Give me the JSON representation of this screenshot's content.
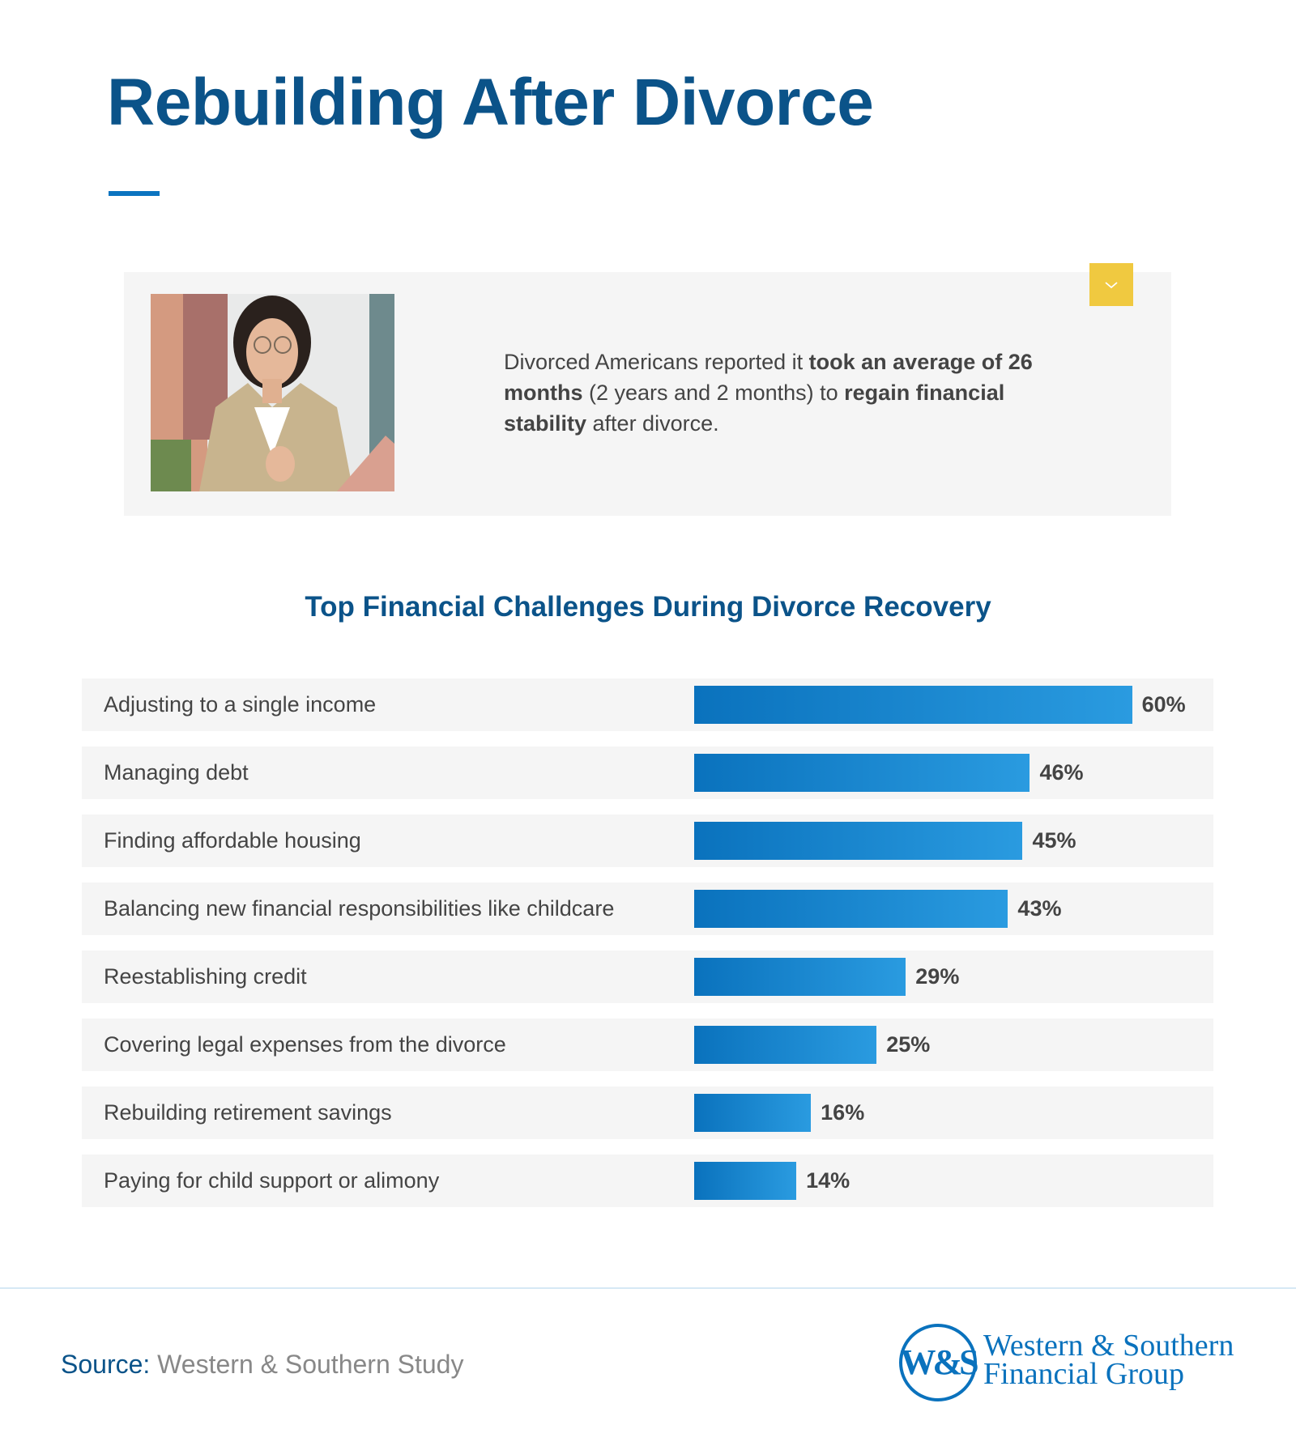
{
  "header": {
    "title": "Rebuilding After Divorce"
  },
  "highlight": {
    "badge_icon": "chevron-down-icon",
    "photo": "woman-with-glasses-holding-coffee-and-tablet",
    "text": {
      "t1": "Divorced Americans reported it ",
      "b1": "took an average of 26 months",
      "t2": " (2 years and 2 months) to ",
      "b2": "regain financial stability",
      "t3": " after divorce."
    }
  },
  "chart_data": {
    "type": "bar",
    "orientation": "horizontal",
    "title": "Top Financial Challenges During Divorce Recovery",
    "categories": [
      "Adjusting to a single income",
      "Managing debt",
      "Finding affordable housing",
      "Balancing new financial responsibilities like childcare",
      "Reestablishing credit",
      "Covering legal expenses from the divorce",
      "Rebuilding retirement savings",
      "Paying for child support or alimony"
    ],
    "values": [
      60,
      46,
      45,
      43,
      29,
      25,
      16,
      14
    ],
    "labels": [
      "60%",
      "46%",
      "45%",
      "43%",
      "29%",
      "25%",
      "16%",
      "14%"
    ],
    "unit": "%",
    "bar_color": "#0a72bd",
    "grid": false
  },
  "footer": {
    "source_key": "Source:",
    "source_value": "Western & Southern Study",
    "logo_mark": "W&S",
    "logo_line1": "Western & Southern",
    "logo_line2": "Financial Group"
  },
  "colors": {
    "title": "#0b5389",
    "accent": "#0b74c0",
    "badge": "#f0c940",
    "card_bg": "#f5f5f5"
  }
}
